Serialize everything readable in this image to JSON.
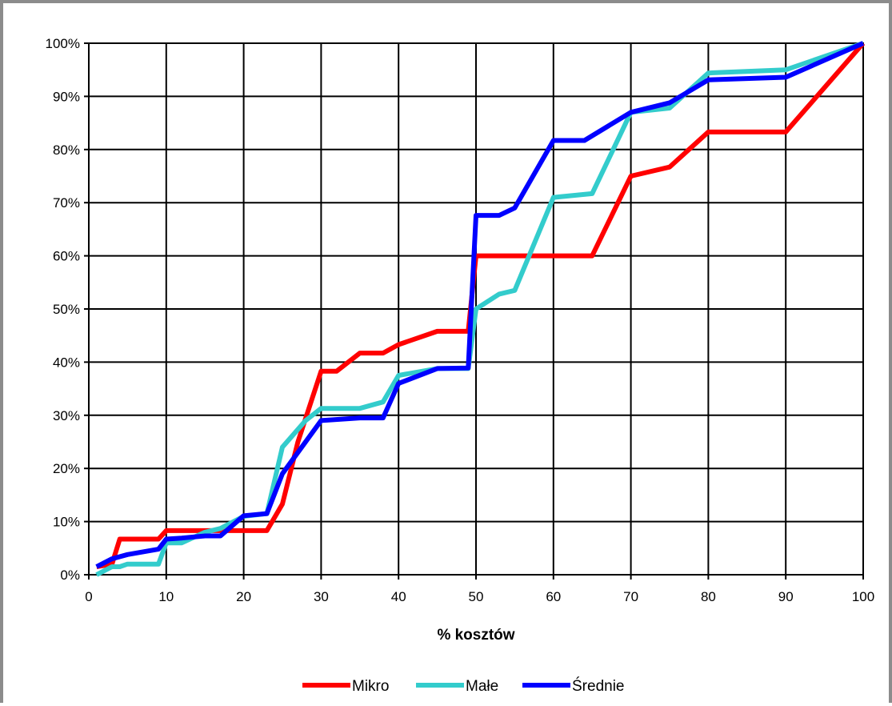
{
  "chart_data": {
    "type": "line",
    "title": "",
    "xlabel": "% kosztów",
    "ylabel": "",
    "xlim": [
      0,
      100
    ],
    "ylim": [
      0,
      100
    ],
    "x_ticks": [
      0,
      10,
      20,
      30,
      40,
      50,
      60,
      70,
      80,
      90,
      100
    ],
    "x_tick_labels": [
      "0",
      "10",
      "20",
      "30",
      "40",
      "50",
      "60",
      "70",
      "80",
      "90",
      "100"
    ],
    "y_ticks": [
      0,
      10,
      20,
      30,
      40,
      50,
      60,
      70,
      80,
      90,
      100
    ],
    "y_tick_labels": [
      "0%",
      "10%",
      "20%",
      "30%",
      "40%",
      "50%",
      "60%",
      "70%",
      "80%",
      "90%",
      "100%"
    ],
    "grid": true,
    "legend_position": "bottom",
    "series": [
      {
        "name": "Mikro",
        "color": "#ff0000",
        "points": [
          [
            1,
            1.5
          ],
          [
            3,
            2
          ],
          [
            4,
            6.7
          ],
          [
            9,
            6.7
          ],
          [
            10,
            8.3
          ],
          [
            23,
            8.3
          ],
          [
            25,
            13.3
          ],
          [
            27,
            25
          ],
          [
            30,
            38.3
          ],
          [
            32,
            38.3
          ],
          [
            35,
            41.7
          ],
          [
            38,
            41.7
          ],
          [
            40,
            43.3
          ],
          [
            45,
            45.8
          ],
          [
            49,
            45.8
          ],
          [
            50,
            60
          ],
          [
            65,
            60
          ],
          [
            70,
            75
          ],
          [
            75,
            76.7
          ],
          [
            80,
            83.3
          ],
          [
            90,
            83.3
          ],
          [
            100,
            100
          ]
        ]
      },
      {
        "name": "Małe",
        "color": "#33cccc",
        "points": [
          [
            1,
            0
          ],
          [
            3,
            1.5
          ],
          [
            4,
            1.5
          ],
          [
            5,
            2
          ],
          [
            9,
            2
          ],
          [
            10,
            6
          ],
          [
            12,
            6
          ],
          [
            15,
            8
          ],
          [
            17,
            8.7
          ],
          [
            20,
            11
          ],
          [
            23,
            11.5
          ],
          [
            25,
            24
          ],
          [
            28,
            29
          ],
          [
            30,
            31.3
          ],
          [
            35,
            31.3
          ],
          [
            38,
            32.5
          ],
          [
            40,
            37.5
          ],
          [
            45,
            38.8
          ],
          [
            49,
            38.8
          ],
          [
            50,
            50
          ],
          [
            53,
            52.8
          ],
          [
            55,
            53.5
          ],
          [
            60,
            71
          ],
          [
            65,
            71.7
          ],
          [
            70,
            87
          ],
          [
            75,
            87.8
          ],
          [
            80,
            94.4
          ],
          [
            90,
            95
          ],
          [
            100,
            100
          ]
        ]
      },
      {
        "name": "Średnie",
        "color": "#0000ff",
        "points": [
          [
            1,
            1.5
          ],
          [
            3,
            3
          ],
          [
            5,
            3.8
          ],
          [
            9,
            4.8
          ],
          [
            10,
            6.7
          ],
          [
            12,
            6.9
          ],
          [
            15,
            7.3
          ],
          [
            17,
            7.3
          ],
          [
            20,
            11.1
          ],
          [
            23,
            11.5
          ],
          [
            25,
            19
          ],
          [
            30,
            29
          ],
          [
            35,
            29.5
          ],
          [
            38,
            29.5
          ],
          [
            40,
            36
          ],
          [
            45,
            38.8
          ],
          [
            49,
            38.9
          ],
          [
            50,
            67.6
          ],
          [
            53,
            67.6
          ],
          [
            55,
            69
          ],
          [
            60,
            81.7
          ],
          [
            64,
            81.7
          ],
          [
            70,
            87
          ],
          [
            75,
            88.8
          ],
          [
            80,
            93.1
          ],
          [
            90,
            93.6
          ],
          [
            100,
            100
          ]
        ]
      }
    ]
  }
}
